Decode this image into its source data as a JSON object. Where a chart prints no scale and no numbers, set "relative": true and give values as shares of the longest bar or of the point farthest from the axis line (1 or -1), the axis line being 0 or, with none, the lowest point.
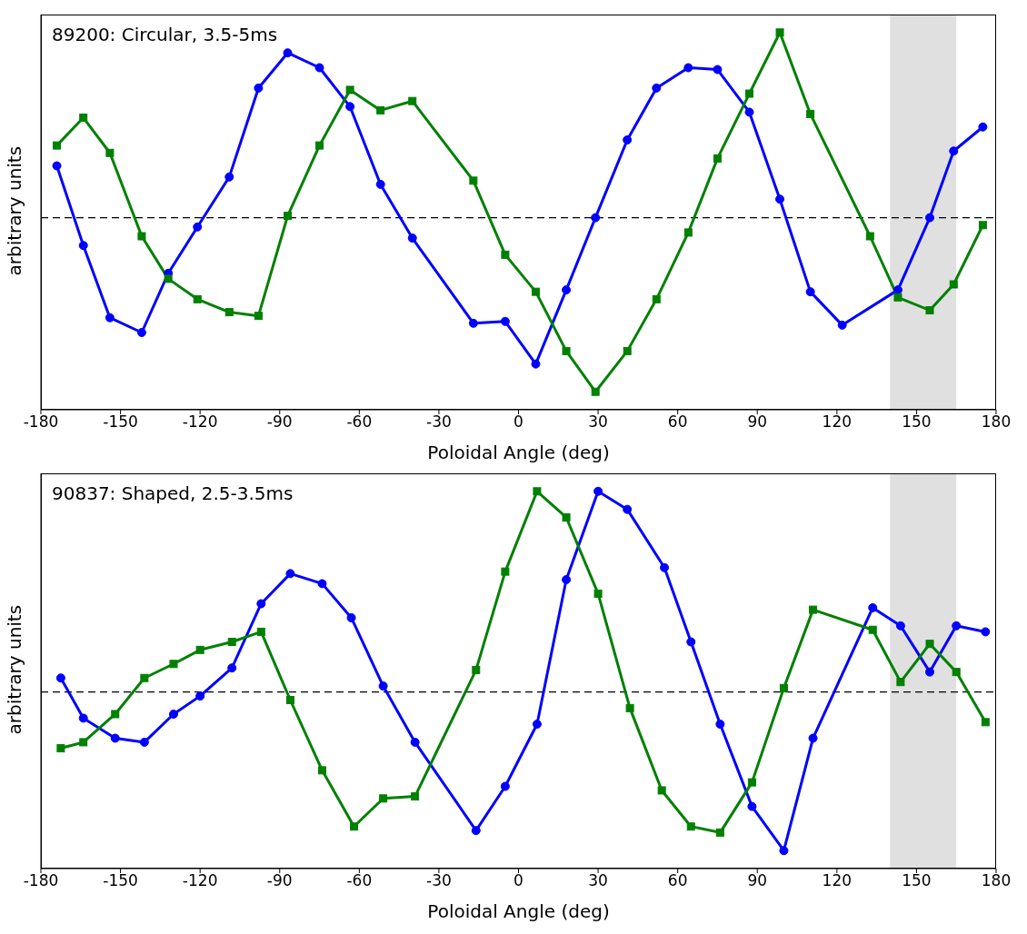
{
  "chart_data": [
    {
      "type": "line",
      "relative": true,
      "xlabel": "Poloidal Angle (deg)",
      "ylabel": "arbitrary units",
      "annotations": [
        "89200: Circular, 3.5-5ms"
      ],
      "xlim": [
        -180,
        180
      ],
      "xticks": [
        -180,
        -150,
        -120,
        -90,
        -60,
        -30,
        0,
        30,
        60,
        90,
        120,
        150,
        180
      ],
      "tick_labels": "x",
      "grid": false,
      "legend": false,
      "line_style": "solid",
      "series": [
        {
          "color": "#0000ff",
          "marker": "circle",
          "x": [
            -174,
            -164,
            -154,
            -142,
            -132,
            -121,
            -109,
            -98,
            -87,
            -75,
            -63.5,
            -52,
            -40,
            -17,
            -5,
            6.5,
            18,
            29,
            41,
            52,
            64,
            75,
            87,
            98.5,
            110,
            122,
            143,
            155,
            164,
            175
          ],
          "values": [
            0.28,
            -0.15,
            -0.54,
            -0.62,
            -0.3,
            -0.05,
            0.22,
            0.7,
            0.89,
            0.81,
            0.6,
            0.18,
            -0.11,
            -0.57,
            -0.56,
            -0.79,
            -0.39,
            0,
            0.42,
            0.7,
            0.81,
            0.8,
            0.57,
            0.1,
            -0.4,
            -0.58,
            -0.39,
            0,
            0.36,
            0.49
          ]
        },
        {
          "color": "#008000",
          "marker": "square",
          "x": [
            -174,
            -164,
            -154,
            -142,
            -132,
            -121,
            -109,
            -98,
            -87,
            -75,
            -63.5,
            -52,
            -40,
            -17,
            -5,
            6.5,
            18,
            29,
            41,
            52,
            64,
            75,
            87,
            98.5,
            110,
            132.5,
            143,
            155,
            164,
            175
          ],
          "values": [
            0.39,
            0.54,
            0.35,
            -0.1,
            -0.33,
            -0.44,
            -0.51,
            -0.53,
            0.01,
            0.39,
            0.69,
            0.58,
            0.63,
            0.2,
            -0.2,
            -0.4,
            -0.72,
            -0.94,
            -0.72,
            -0.44,
            -0.08,
            0.32,
            0.67,
            1,
            0.56,
            -0.1,
            -0.43,
            -0.5,
            -0.36,
            -0.04
          ]
        }
      ],
      "ref_lines": [
        {
          "axis": "y",
          "value": 0,
          "color": "#000000",
          "line_style": "dashed"
        }
      ],
      "bands": [
        {
          "axis": "x",
          "from": 140,
          "to": 165,
          "color": "#e0e0e0"
        }
      ]
    },
    {
      "type": "line",
      "relative": true,
      "xlabel": "Poloidal Angle (deg)",
      "ylabel": "arbitrary units",
      "annotations": [
        "90837: Shaped, 2.5-3.5ms"
      ],
      "xlim": [
        -180,
        180
      ],
      "xticks": [
        -180,
        -150,
        -120,
        -90,
        -60,
        -30,
        0,
        30,
        60,
        90,
        120,
        150,
        180
      ],
      "tick_labels": "x",
      "grid": false,
      "legend": false,
      "line_style": "solid",
      "series": [
        {
          "color": "#0000ff",
          "marker": "circle",
          "x": [
            -172.5,
            -164,
            -152,
            -141,
            -130,
            -120,
            -108,
            -97,
            -86,
            -74,
            -63,
            -51,
            -39,
            -16,
            -5,
            7,
            18,
            30,
            41,
            55,
            65,
            76,
            88,
            100,
            111,
            133.5,
            144,
            155,
            165,
            176
          ],
          "values": [
            0.07,
            -0.13,
            -0.23,
            -0.25,
            -0.11,
            -0.02,
            0.12,
            0.44,
            0.59,
            0.54,
            0.37,
            0.03,
            -0.25,
            -0.69,
            -0.47,
            -0.16,
            0.56,
            1,
            0.91,
            0.62,
            0.25,
            -0.16,
            -0.57,
            -0.79,
            -0.23,
            0.42,
            0.33,
            0.1,
            0.33,
            0.3
          ]
        },
        {
          "color": "#008000",
          "marker": "square",
          "x": [
            -172.5,
            -164,
            -152,
            -141,
            -130,
            -120,
            -108,
            -97,
            -86,
            -74,
            -62,
            -51,
            -39,
            -16,
            -5,
            7,
            18,
            30,
            42,
            54,
            65,
            76,
            88,
            100,
            111,
            133.5,
            144,
            155,
            165,
            176
          ],
          "values": [
            -0.28,
            -0.25,
            -0.11,
            0.07,
            0.14,
            0.21,
            0.25,
            0.3,
            -0.04,
            -0.39,
            -0.67,
            -0.53,
            -0.52,
            0.11,
            0.6,
            1,
            0.87,
            0.49,
            -0.08,
            -0.49,
            -0.67,
            -0.7,
            -0.45,
            0.02,
            0.41,
            0.31,
            0.05,
            0.24,
            0.1,
            -0.15
          ]
        }
      ],
      "ref_lines": [
        {
          "axis": "y",
          "value": 0,
          "color": "#000000",
          "line_style": "dashed"
        }
      ],
      "bands": [
        {
          "axis": "x",
          "from": 140,
          "to": 165,
          "color": "#e0e0e0"
        }
      ]
    }
  ]
}
